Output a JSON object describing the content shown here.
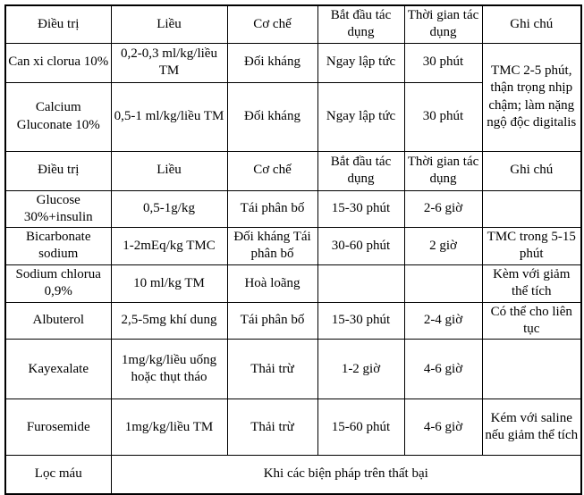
{
  "table": {
    "description_colors": {
      "text": "#000000",
      "border": "#000000",
      "background": "#ffffff"
    },
    "header": {
      "treatment": "Điều trị",
      "dose": "Liều",
      "mechanism": "Cơ chế",
      "onset": "Bắt đầu tác dụng",
      "duration": "Thời gian tác dụng",
      "note": "Ghi chú"
    },
    "rows": [
      {
        "treatment": "Can xi clorua 10%",
        "dose": "0,2-0,3 ml/kg/liều TM",
        "mechanism": "Đối kháng",
        "onset": "Ngay lập tức",
        "duration": "30 phút",
        "note": "TMC 2-5 phút, thận trọng nhịp chậm; làm nặng ngộ độc digitalis"
      },
      {
        "treatment": "Calcium Gluconate 10%",
        "dose": "0,5-1 ml/kg/liều TM",
        "mechanism": "Đối kháng",
        "onset": "Ngay lập tức",
        "duration": "30 phút"
      },
      {
        "treatment": "Glucose 30%+insulin",
        "dose": "0,5-1g/kg",
        "mechanism": "Tái phân bố",
        "onset": "15-30 phút",
        "duration": "2-6 giờ",
        "note": ""
      },
      {
        "treatment": "Bicarbonate sodium",
        "dose": "1-2mEq/kg TMC",
        "mechanism": "Đối kháng Tái phân bố",
        "onset": "30-60 phút",
        "duration": "2 giờ",
        "note": "TMC trong 5-15 phút"
      },
      {
        "treatment": "Sodium chlorua 0,9%",
        "dose": "10 ml/kg TM",
        "mechanism": "Hoà loãng",
        "onset": "",
        "duration": "",
        "note": "Kèm với giảm thể tích"
      },
      {
        "treatment": "Albuterol",
        "dose": "2,5-5mg khí dung",
        "mechanism": "Tái phân bố",
        "onset": "15-30 phút",
        "duration": "2-4 giờ",
        "note": "Có thể cho liên tục"
      },
      {
        "treatment": "Kayexalate",
        "dose": "1mg/kg/liều uống hoặc thụt tháo",
        "mechanism": "Thải trừ",
        "onset": "1-2 giờ",
        "duration": "4-6 giờ",
        "note": ""
      },
      {
        "treatment": "Furosemide",
        "dose": "1mg/kg/liều TM",
        "mechanism": "Thải trừ",
        "onset": "15-60 phút",
        "duration": "4-6 giờ",
        "note": "Kém với saline nếu giảm thể tích"
      },
      {
        "treatment": "Lọc máu",
        "merged_note": "Khi các biện pháp trên thất bại"
      }
    ]
  }
}
